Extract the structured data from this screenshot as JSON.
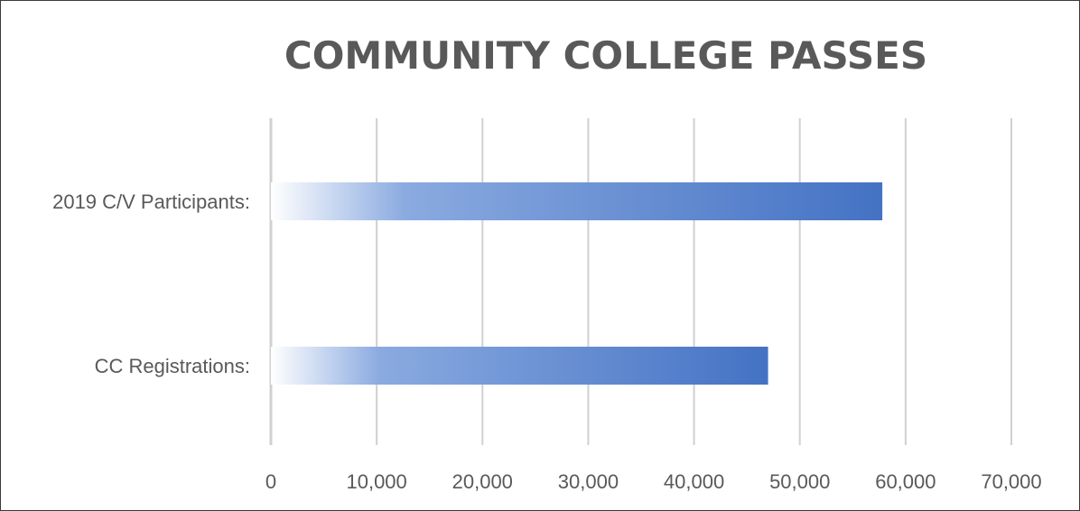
{
  "chart_data": {
    "type": "bar",
    "orientation": "horizontal",
    "title": "COMMUNITY COLLEGE PASSES",
    "categories": [
      "2019 C/V Participants:",
      "CC Registrations:"
    ],
    "values": [
      57800,
      47000
    ],
    "xlim": [
      0,
      70000
    ],
    "x_ticks": [
      0,
      10000,
      20000,
      30000,
      40000,
      50000,
      60000,
      70000
    ],
    "x_tick_labels": [
      "0",
      "10,000",
      "20,000",
      "30,000",
      "40,000",
      "50,000",
      "60,000",
      "70,000"
    ],
    "grid": "vertical",
    "legend": "none",
    "colors": {
      "bar_start": "#ffffff",
      "bar_mid": "#8aaae0",
      "bar_end": "#4472c4",
      "grid": "#d0d0d0",
      "text": "#595959"
    }
  }
}
